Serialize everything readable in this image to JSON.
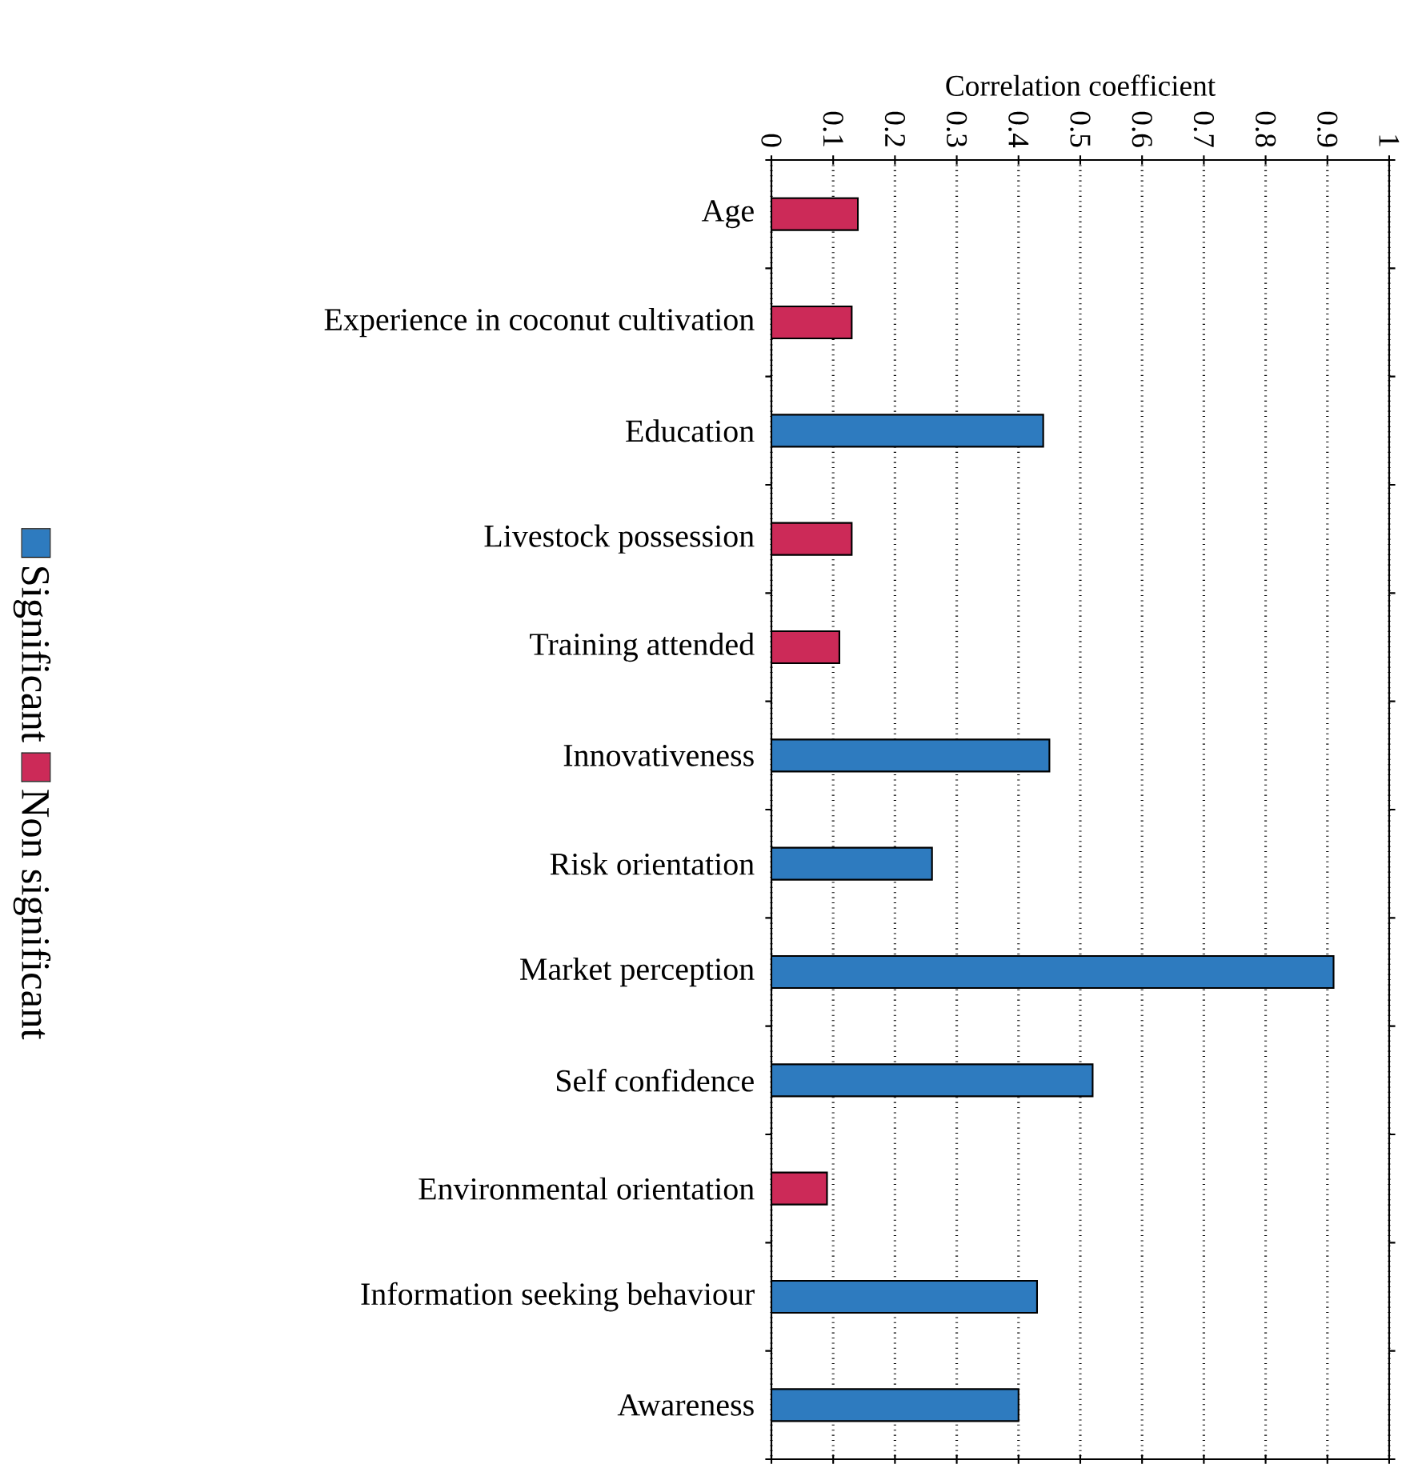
{
  "chart_data": {
    "type": "bar",
    "orientation": "horizontal",
    "xlabel": "Correlation coefficient",
    "categories": [
      "Age",
      "Experience in coconut cultivation",
      "Education",
      "Livestock possession",
      "Training attended",
      "Innovativeness",
      "Risk orientation",
      "Market perception",
      "Self confidence",
      "Environmental orientation",
      "Information seeking behaviour",
      "Awareness"
    ],
    "series": [
      {
        "name": "Significant",
        "color": "#2e7bbf",
        "values": [
          null,
          null,
          0.44,
          null,
          null,
          0.45,
          0.26,
          0.91,
          0.52,
          null,
          0.43,
          0.4
        ]
      },
      {
        "name": "Non significant",
        "color": "#cc2a58",
        "values": [
          0.14,
          0.13,
          null,
          0.13,
          0.11,
          null,
          null,
          null,
          null,
          0.09,
          null,
          null
        ]
      }
    ],
    "xlim": [
      0,
      1
    ],
    "xticks": [
      0,
      0.1,
      0.2,
      0.3,
      0.4,
      0.5,
      0.6,
      0.7,
      0.8,
      0.9,
      1
    ],
    "grid": "x",
    "legend": "left"
  }
}
